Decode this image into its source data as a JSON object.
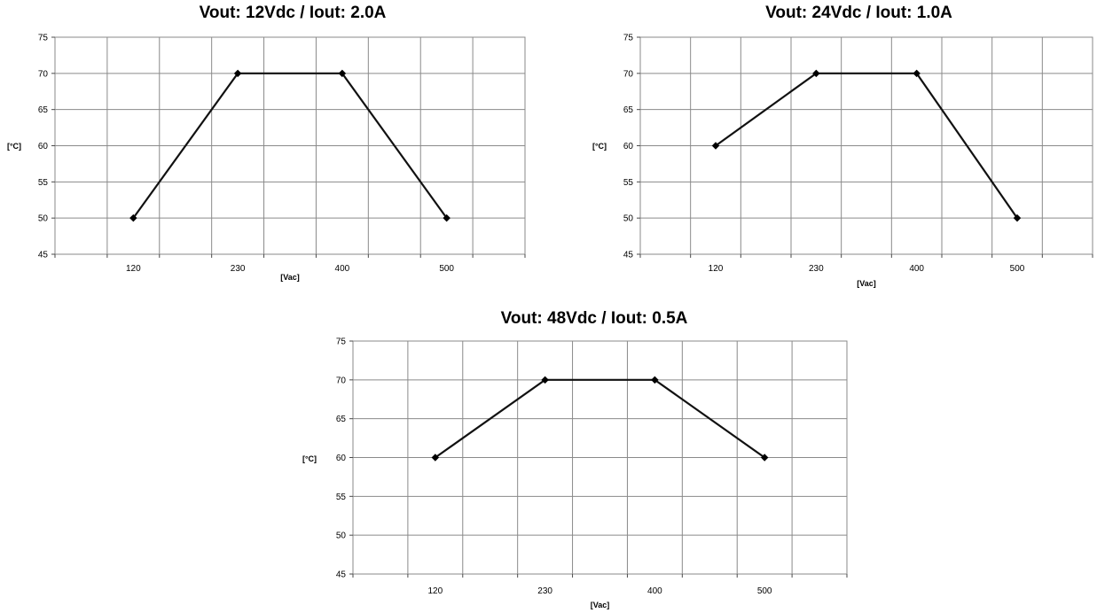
{
  "chart_data": [
    {
      "type": "line",
      "title": "Vout: 12Vdc / Iout: 2.0A",
      "xlabel": "[Vac]",
      "ylabel": "[°C]",
      "x_categories": [
        "",
        "120",
        "",
        "230",
        "",
        "400",
        "",
        "500",
        ""
      ],
      "ylim": [
        45,
        75
      ],
      "y_ticks": [
        45,
        50,
        55,
        60,
        65,
        70,
        75
      ],
      "grid": true,
      "series": [
        {
          "x": [
            "120",
            "230",
            "400",
            "500"
          ],
          "values": [
            50,
            70,
            70,
            50
          ]
        }
      ]
    },
    {
      "type": "line",
      "title": "Vout: 24Vdc / Iout: 1.0A",
      "xlabel": "[Vac]",
      "ylabel": "[°C]",
      "x_categories": [
        "",
        "120",
        "",
        "230",
        "",
        "400",
        "",
        "500",
        ""
      ],
      "ylim": [
        45,
        75
      ],
      "y_ticks": [
        45,
        50,
        55,
        60,
        65,
        70,
        75
      ],
      "grid": true,
      "series": [
        {
          "x": [
            "120",
            "230",
            "400",
            "500"
          ],
          "values": [
            60,
            70,
            70,
            50
          ]
        }
      ]
    },
    {
      "type": "line",
      "title": "Vout: 48Vdc / Iout: 0.5A",
      "xlabel": "[Vac]",
      "ylabel": "[°C]",
      "x_categories": [
        "",
        "120",
        "",
        "230",
        "",
        "400",
        "",
        "500",
        ""
      ],
      "ylim": [
        45,
        75
      ],
      "y_ticks": [
        45,
        50,
        55,
        60,
        65,
        70,
        75
      ],
      "grid": true,
      "series": [
        {
          "x": [
            "120",
            "230",
            "400",
            "500"
          ],
          "values": [
            60,
            70,
            70,
            60
          ]
        }
      ]
    }
  ]
}
